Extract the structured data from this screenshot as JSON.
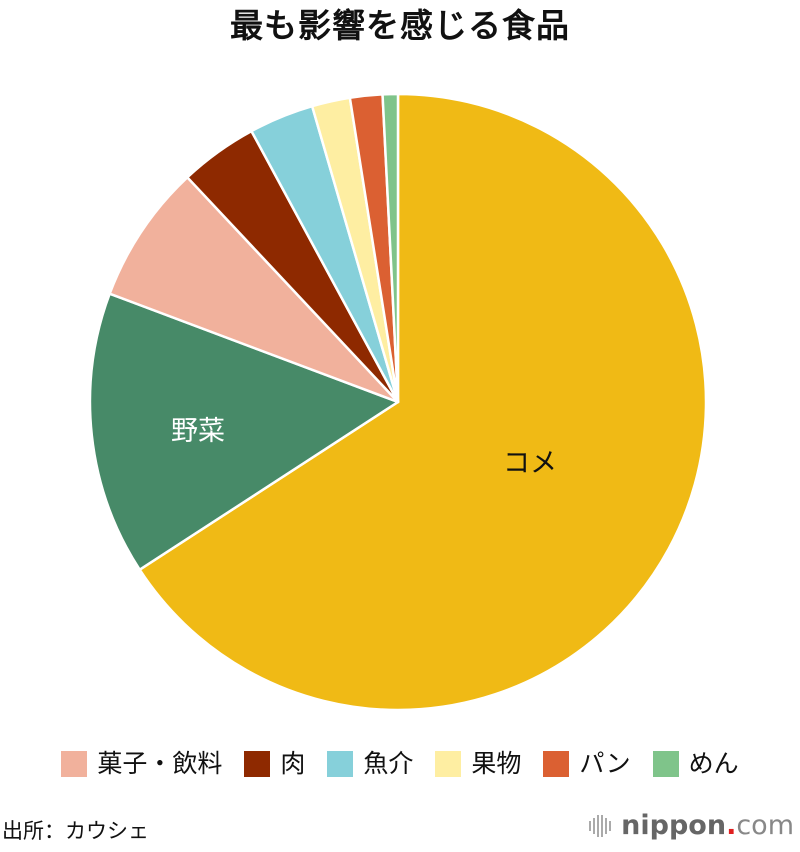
{
  "title": "最も影響を感じる食品",
  "chart_data": {
    "type": "pie",
    "title": "最も影響を感じる食品",
    "categories": [
      "コメ",
      "野菜",
      "菓子・飲料",
      "肉",
      "魚介",
      "果物",
      "パン",
      "めん"
    ],
    "values": [
      65.9,
      14.9,
      7.3,
      4.1,
      3.4,
      2.0,
      1.7,
      0.8
    ],
    "colors": [
      "#F0BA15",
      "#478A68",
      "#F1B19C",
      "#8E2900",
      "#86D0DA",
      "#FEEEA2",
      "#DB6032",
      "#7FC48A"
    ],
    "start_angle": "12 o'clock, clockwise",
    "slice_labels": [
      {
        "category": "コメ",
        "text": "コメ",
        "color": "#111111"
      },
      {
        "category": "野菜",
        "text": "野菜",
        "color": "#ffffff"
      }
    ],
    "legend_position": "bottom",
    "unit": "%"
  },
  "legend": {
    "items": [
      {
        "label": "菓子・飲料",
        "color": "#F1B19C"
      },
      {
        "label": "肉",
        "color": "#8E2900"
      },
      {
        "label": "魚介",
        "color": "#86D0DA"
      },
      {
        "label": "果物",
        "color": "#FEEEA2"
      },
      {
        "label": "パン",
        "color": "#DB6032"
      },
      {
        "label": "めん",
        "color": "#7FC48A"
      }
    ]
  },
  "footer": {
    "source": "出所：カウシェ",
    "logo_name": "nippon",
    "logo_dot": ".",
    "logo_tld": "com"
  }
}
